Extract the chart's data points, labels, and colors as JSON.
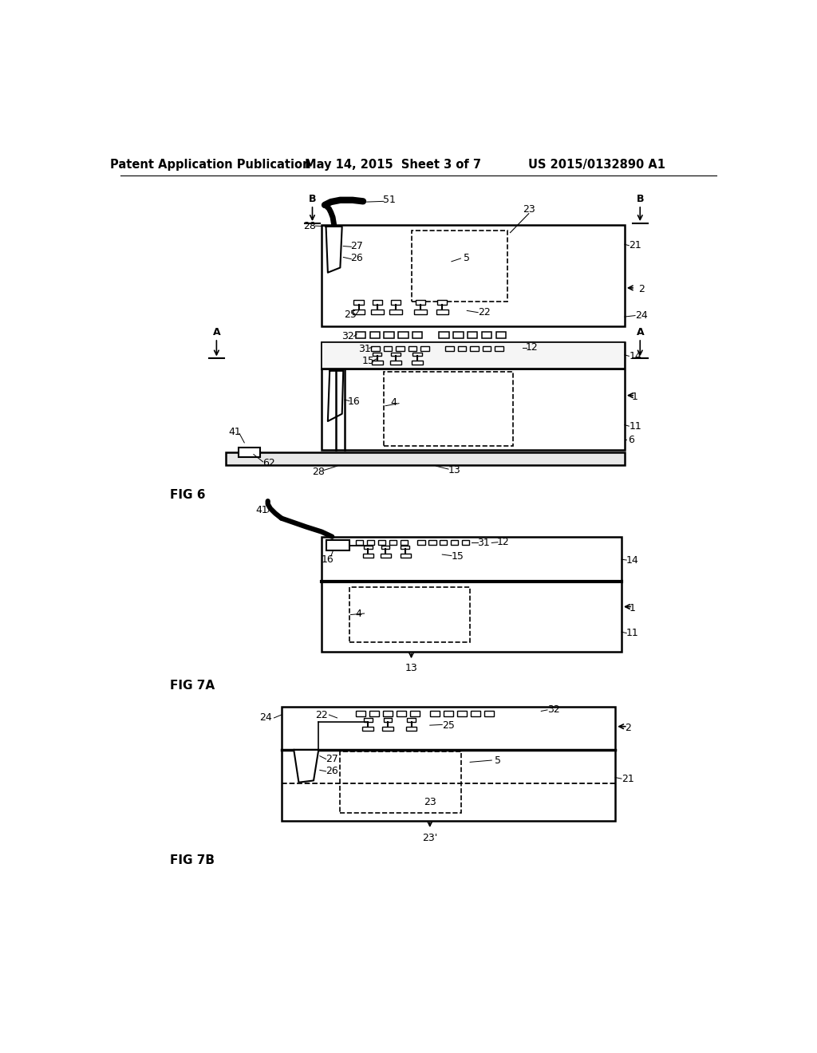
{
  "bg_color": "#ffffff",
  "header_left": "Patent Application Publication",
  "header_mid": "May 14, 2015  Sheet 3 of 7",
  "header_right": "US 2015/0132890 A1"
}
